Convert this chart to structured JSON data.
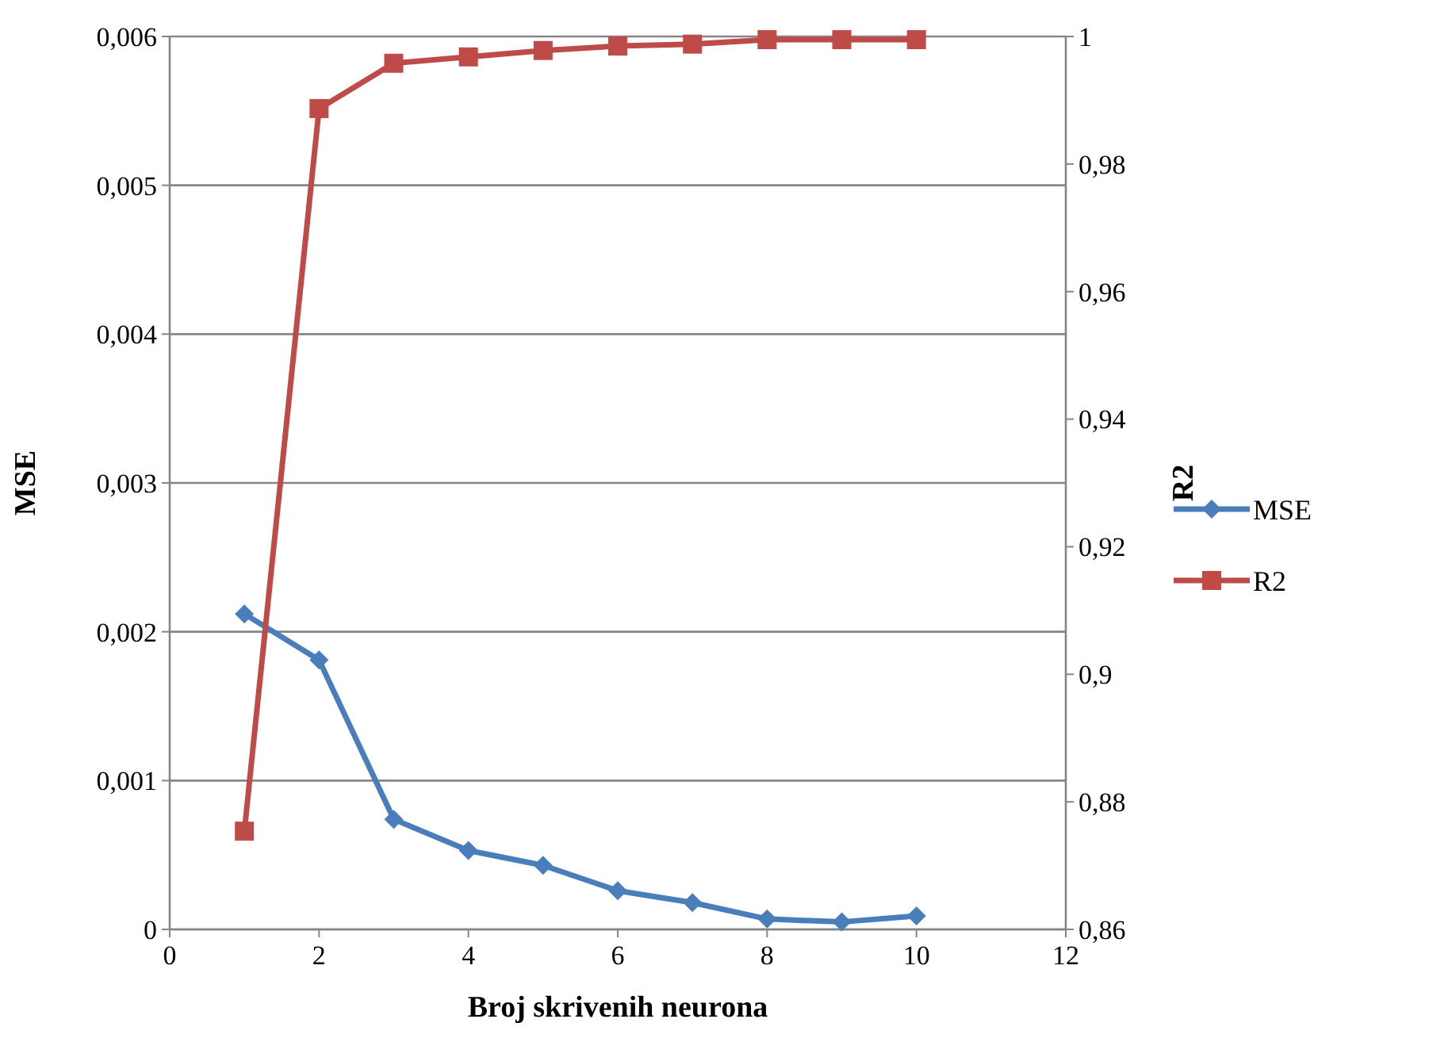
{
  "chart_data": {
    "type": "line",
    "xlabel": "Broj skrivenih neurona",
    "ylabel": "MSE",
    "y2label": "R2",
    "x": [
      1,
      2,
      3,
      4,
      5,
      6,
      7,
      8,
      9,
      10
    ],
    "xlim": [
      0,
      12
    ],
    "xticks": [
      0,
      2,
      4,
      6,
      8,
      10,
      12
    ],
    "ylim": [
      0,
      0.006
    ],
    "yticks": [
      {
        "value": 0,
        "label": "0"
      },
      {
        "value": 0.001,
        "label": "0,001"
      },
      {
        "value": 0.002,
        "label": "0,002"
      },
      {
        "value": 0.003,
        "label": "0,003"
      },
      {
        "value": 0.004,
        "label": "0,004"
      },
      {
        "value": 0.005,
        "label": "0,005"
      },
      {
        "value": 0.006,
        "label": "0,006"
      }
    ],
    "y2lim": [
      0.86,
      1
    ],
    "y2ticks": [
      {
        "value": 0.86,
        "label": "0,86"
      },
      {
        "value": 0.88,
        "label": "0,88"
      },
      {
        "value": 0.9,
        "label": "0,9"
      },
      {
        "value": 0.92,
        "label": "0,92"
      },
      {
        "value": 0.94,
        "label": "0,94"
      },
      {
        "value": 0.96,
        "label": "0,96"
      },
      {
        "value": 0.98,
        "label": "0,98"
      },
      {
        "value": 1,
        "label": "1"
      }
    ],
    "grid": "y",
    "legend": "right",
    "series": [
      {
        "name": "MSE",
        "color": "#4a7ebb",
        "marker": "diamond",
        "values": [
          0.00212,
          0.00181,
          0.00074,
          0.00053,
          0.00043,
          0.00026,
          0.00018,
          7e-05,
          5e-05,
          9e-05
        ]
      },
      {
        "name": "R2",
        "color": "#be4b48",
        "marker": "square",
        "axis": "y2",
        "values": [
          0.8754,
          0.9887,
          0.9958,
          0.9968,
          0.9978,
          0.9985,
          0.9988,
          0.9995,
          0.9995,
          0.9995
        ]
      }
    ]
  }
}
